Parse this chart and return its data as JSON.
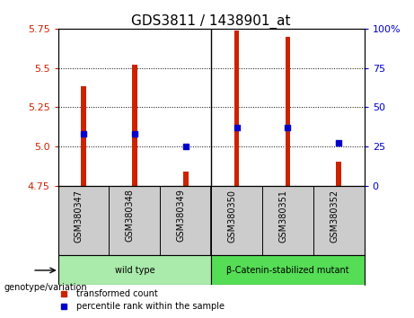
{
  "title": "GDS3811 / 1438901_at",
  "samples": [
    "GSM380347",
    "GSM380348",
    "GSM380349",
    "GSM380350",
    "GSM380351",
    "GSM380352"
  ],
  "red_values": [
    5.385,
    5.52,
    4.84,
    5.74,
    5.7,
    4.9
  ],
  "blue_values": [
    5.08,
    5.08,
    5.0,
    5.12,
    5.12,
    5.02
  ],
  "y_min": 4.75,
  "y_max": 5.75,
  "y_ticks": [
    4.75,
    5.0,
    5.25,
    5.5,
    5.75
  ],
  "y_right_ticks": [
    0,
    25,
    50,
    75,
    100
  ],
  "groups": [
    {
      "label": "wild type",
      "start": 0,
      "end": 2,
      "color": "#aaeaaa"
    },
    {
      "label": "β-Catenin-stabilized mutant",
      "start": 3,
      "end": 5,
      "color": "#55dd55"
    }
  ],
  "bar_color": "#cc2200",
  "marker_color": "#0000cc",
  "baseline": 4.75,
  "title_fontsize": 11,
  "axis_color_left": "#cc2200",
  "axis_color_right": "#0000cc",
  "bg_color": "#ffffff",
  "sample_bg_color": "#cccccc",
  "bar_width": 0.1,
  "marker_size": 5,
  "legend_red": "transformed count",
  "legend_blue": "percentile rank within the sample",
  "genotype_label": "genotype/variation"
}
